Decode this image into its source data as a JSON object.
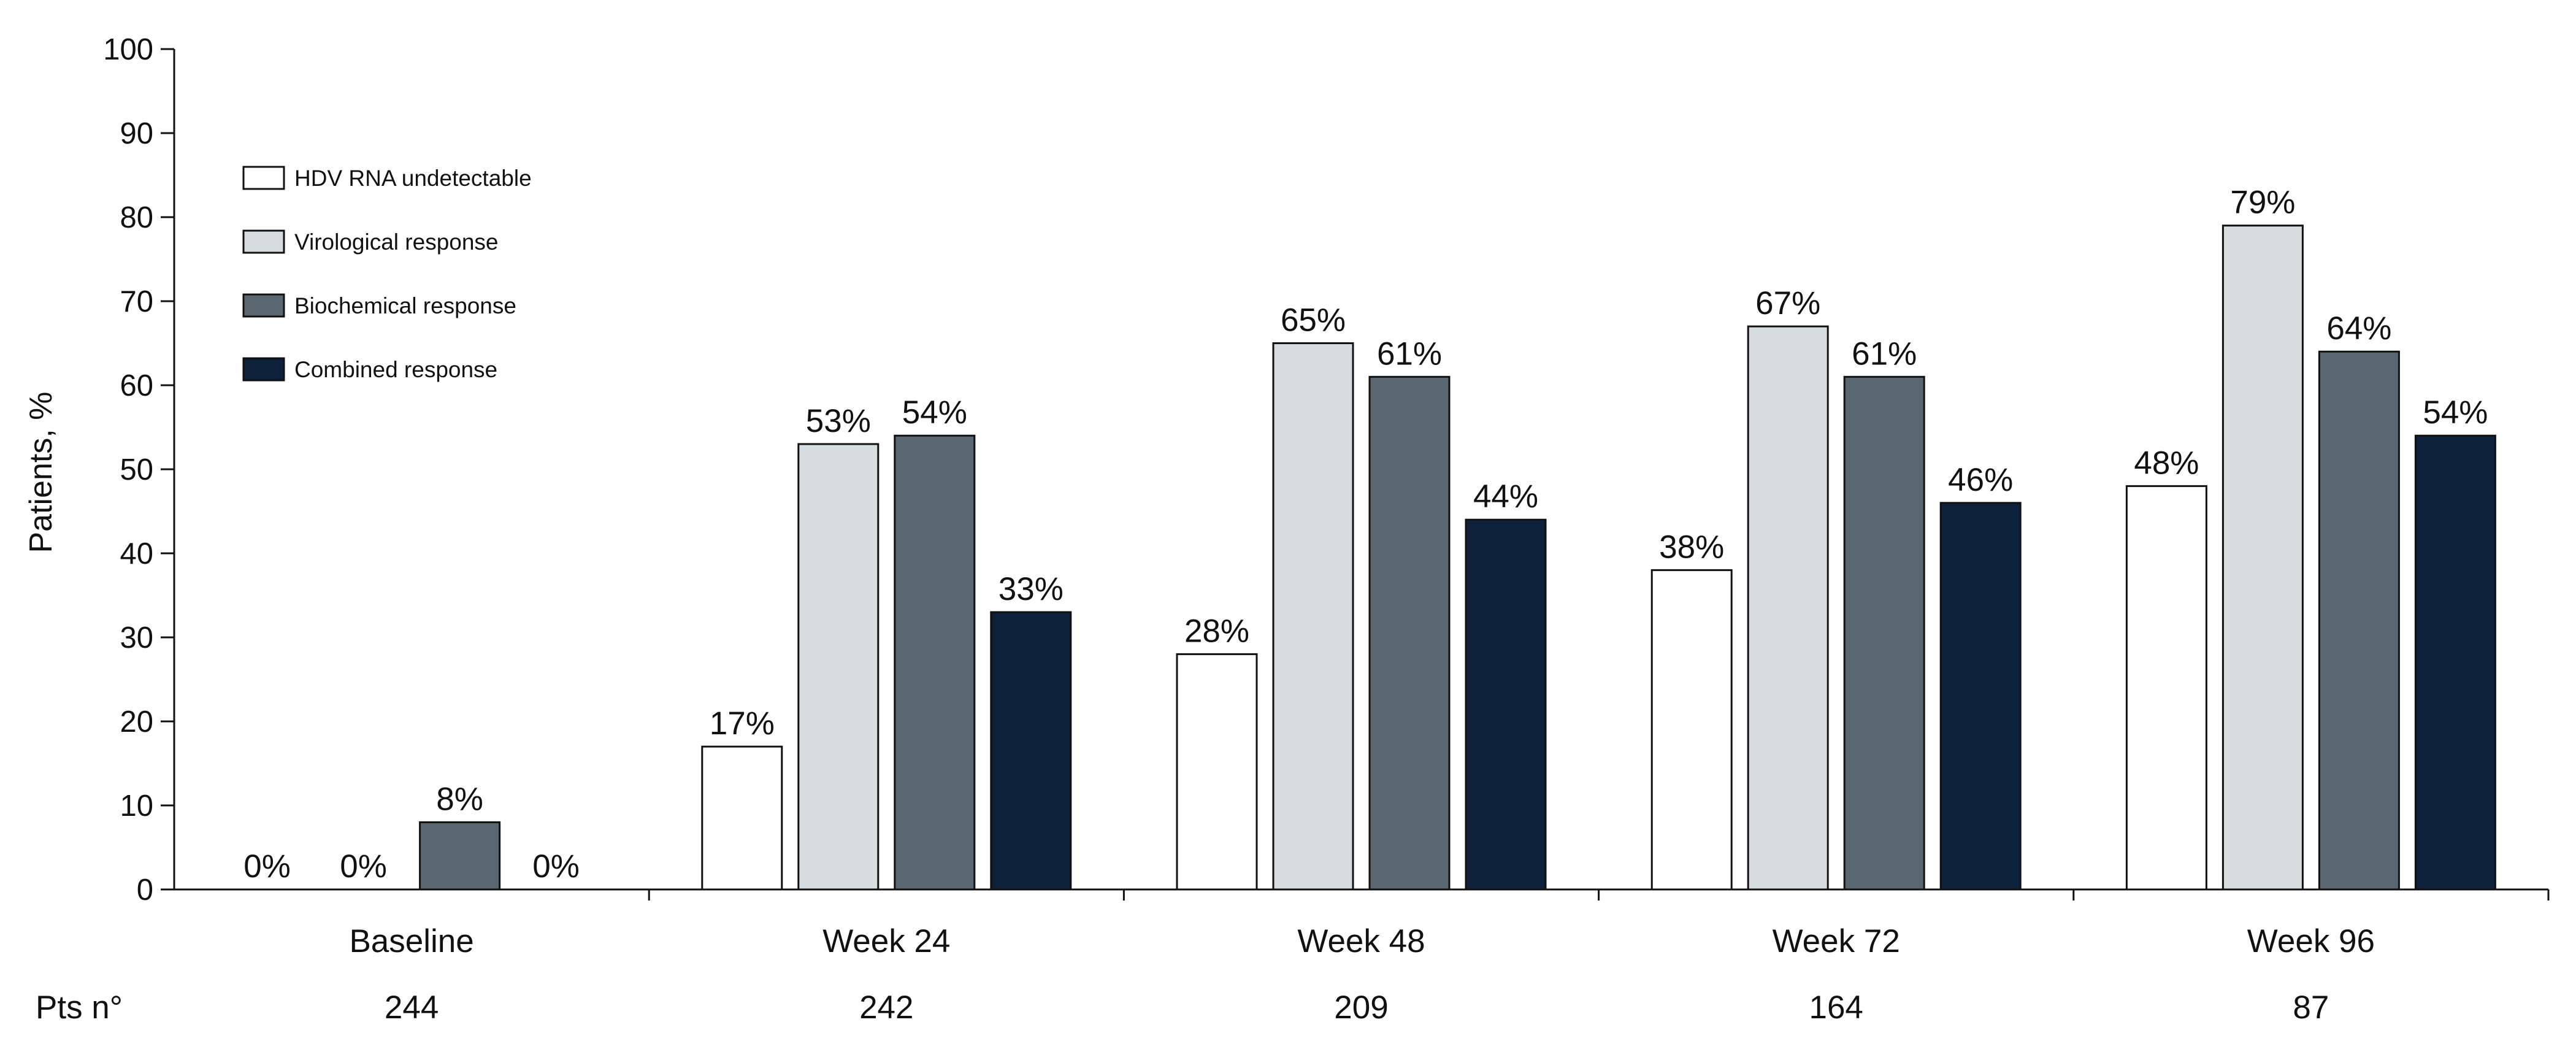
{
  "chart_data": {
    "type": "bar",
    "ylabel": "Patients, %",
    "ylim": [
      0,
      100
    ],
    "yticks": [
      0,
      10,
      20,
      30,
      40,
      50,
      60,
      70,
      80,
      90,
      100
    ],
    "grid": false,
    "legend_position": "top-left",
    "categories": [
      "Baseline",
      "Week 24",
      "Week 48",
      "Week 72",
      "Week 96"
    ],
    "series": [
      {
        "name": "HDV RNA undetectable",
        "color": "#ffffff",
        "values": [
          0,
          17,
          28,
          38,
          48
        ],
        "labels": [
          "0%",
          "17%",
          "28%",
          "38%",
          "48%"
        ]
      },
      {
        "name": "Virological response",
        "color": "#d7dcdf",
        "values": [
          0,
          53,
          65,
          67,
          79
        ],
        "labels": [
          "0%",
          "53%",
          "65%",
          "67%",
          "79%"
        ]
      },
      {
        "name": "Biochemical response",
        "color": "#5b6770",
        "values": [
          8,
          54,
          61,
          61,
          64
        ],
        "labels": [
          "8%",
          "54%",
          "61%",
          "61%",
          "64%"
        ]
      },
      {
        "name": "Combined response",
        "color": "#0e213b",
        "values": [
          0,
          33,
          44,
          46,
          54
        ],
        "labels": [
          "0%",
          "33%",
          "44%",
          "46%",
          "54%"
        ]
      }
    ],
    "patients_row": {
      "label": "Pts n°",
      "values": [
        "244",
        "242",
        "209",
        "164",
        "87"
      ]
    }
  }
}
